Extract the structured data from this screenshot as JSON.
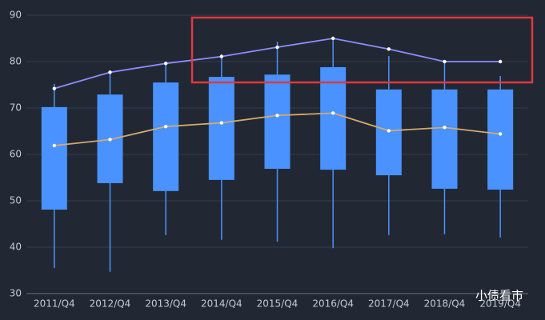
{
  "chart_data": {
    "type": "boxplot",
    "categories": [
      "2011/Q4",
      "2012/Q4",
      "2013/Q4",
      "2014/Q4",
      "2015/Q4",
      "2016/Q4",
      "2017/Q4",
      "2018/Q4",
      "2019/Q4"
    ],
    "boxes": {
      "color": "#4992ff",
      "low": [
        35.5,
        34.7,
        42.6,
        41.6,
        41.2,
        39.8,
        42.6,
        42.8,
        42.1
      ],
      "q1": [
        48.1,
        53.8,
        52.1,
        54.5,
        56.9,
        56.7,
        55.5,
        52.6,
        52.4
      ],
      "q3": [
        70.2,
        72.9,
        75.5,
        76.7,
        77.2,
        78.8,
        74.0,
        74.0,
        74.0
      ],
      "high": [
        75.2,
        77.4,
        79.5,
        81.6,
        84.3,
        85.0,
        81.2,
        79.8,
        76.9
      ]
    },
    "series": [
      {
        "color": "#8c8cff",
        "values": [
          74.2,
          77.7,
          79.6,
          81.1,
          83.1,
          85.0,
          82.7,
          80.0,
          80.0
        ]
      },
      {
        "color": "#d4a96e",
        "values": [
          61.9,
          63.2,
          66.0,
          66.8,
          68.4,
          68.9,
          65.1,
          65.8,
          64.4
        ]
      }
    ],
    "ylim": [
      30,
      90
    ],
    "yticks": [
      30,
      40,
      50,
      60,
      70,
      80,
      90
    ],
    "grid": true,
    "watermark": "小债看市"
  }
}
